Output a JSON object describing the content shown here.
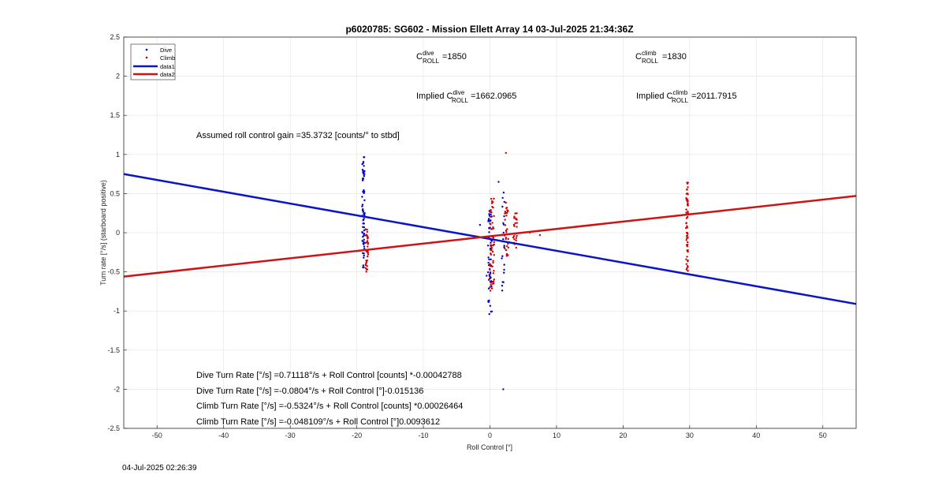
{
  "chart_data": {
    "type": "scatter",
    "title": "p6020785: SG602 - Mission Ellett Array 14 03-Jul-2025 21:34:36Z",
    "xlabel": "Roll Control [°]",
    "ylabel": "Turn rate [°/s] (starboard positive)",
    "xlim": [
      -55,
      55
    ],
    "ylim": [
      -2.5,
      2.5
    ],
    "xticks": [
      -50,
      -40,
      -30,
      -20,
      -10,
      0,
      10,
      20,
      30,
      40,
      50
    ],
    "yticks": [
      -2.5,
      -2,
      -1.5,
      -1,
      -0.5,
      0,
      0.5,
      1,
      1.5,
      2,
      2.5
    ],
    "grid": true,
    "legend_placement": "top-left",
    "legend": [
      {
        "label": "Dive",
        "kind": "marker",
        "color": "#0000cc"
      },
      {
        "label": "Climb",
        "kind": "marker",
        "color": "#cc0000"
      },
      {
        "label": "data1",
        "kind": "line",
        "color": "#0000cc"
      },
      {
        "label": "data2",
        "kind": "line",
        "color": "#cc0000"
      }
    ],
    "series": [
      {
        "name": "data1",
        "kind": "line",
        "color": "#0a14c8",
        "x": [
          -55,
          55
        ],
        "y": [
          0.75,
          -0.91
        ]
      },
      {
        "name": "data2",
        "kind": "line",
        "color": "#cc1414",
        "x": [
          -55,
          55
        ],
        "y": [
          -0.56,
          0.47
        ]
      },
      {
        "name": "Dive",
        "kind": "scatter",
        "color": "#0000cc",
        "clusters": [
          {
            "x": -19.0,
            "xspread": 0.4,
            "ymin": -0.45,
            "ymax": 0.97,
            "n": 70
          },
          {
            "x": 0.0,
            "xspread": 0.6,
            "ymin": -1.05,
            "ymax": 0.3,
            "n": 55
          },
          {
            "x": 2.0,
            "xspread": 0.5,
            "ymin": -0.8,
            "ymax": 0.65,
            "n": 20
          }
        ],
        "points": [
          [
            2.0,
            -2.0
          ],
          [
            1.3,
            0.65
          ],
          [
            -0.5,
            -0.55
          ],
          [
            -1.5,
            0.1
          ]
        ]
      },
      {
        "name": "Climb",
        "kind": "scatter",
        "color": "#cc0000",
        "clusters": [
          {
            "x": -18.5,
            "xspread": 0.4,
            "ymin": -0.5,
            "ymax": 0.05,
            "n": 35
          },
          {
            "x": 0.3,
            "xspread": 0.7,
            "ymin": -0.75,
            "ymax": 0.48,
            "n": 60
          },
          {
            "x": 2.5,
            "xspread": 0.6,
            "ymin": -0.3,
            "ymax": 0.4,
            "n": 30
          },
          {
            "x": 3.8,
            "xspread": 0.6,
            "ymin": -0.2,
            "ymax": 0.25,
            "n": 25
          },
          {
            "x": 29.6,
            "xspread": 0.3,
            "ymin": -0.5,
            "ymax": 0.68,
            "n": 60
          }
        ],
        "points": [
          [
            2.4,
            1.02
          ],
          [
            7.5,
            -0.03
          ],
          [
            6.0,
            0.0
          ]
        ]
      }
    ],
    "annotations": {
      "c_dive": {
        "base": "C",
        "sup": "dive",
        "sub": "ROLL",
        "value": "=1850"
      },
      "c_climb": {
        "base": "C",
        "sup": "climb",
        "sub": "ROLL",
        "value": "=1830"
      },
      "implied_dive": {
        "prefix": "Implied C",
        "sup": "dive",
        "sub": "ROLL",
        "value": "=1662.0965"
      },
      "implied_climb": {
        "prefix": "Implied C",
        "sup": "climb",
        "sub": "ROLL",
        "value": "=2011.7915"
      },
      "gain": "Assumed roll control gain =35.3732 [counts/° to stbd]",
      "fits": [
        "Dive Turn Rate [°/s] =0.71118°/s + Roll Control [counts] *-0.00042788",
        "Dive Turn Rate [°/s] =-0.0804°/s + Roll Control [°]-0.015136",
        "Climb Turn Rate [°/s] =-0.5324°/s + Roll Control [counts] *0.00026464",
        "Climb Turn Rate [°/s] =-0.048109°/s + Roll Control [°]0.0093612"
      ]
    }
  },
  "footer": {
    "timestamp": "04-Jul-2025 02:26:39"
  }
}
